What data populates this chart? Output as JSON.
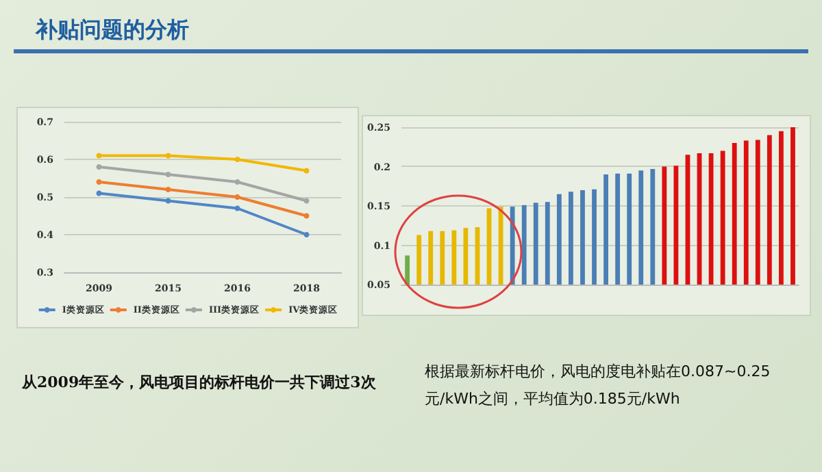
{
  "chart_data": [
    {
      "type": "line",
      "title": "补贴问题的分析",
      "categories": [
        "2009",
        "2015",
        "2016",
        "2018"
      ],
      "series": [
        {
          "name": "I类资源区",
          "color": "#4f86c6",
          "values": [
            0.51,
            0.49,
            0.47,
            0.4
          ]
        },
        {
          "name": "II类资源区",
          "color": "#ed7d31",
          "values": [
            0.54,
            0.52,
            0.5,
            0.45
          ]
        },
        {
          "name": "III类资源区",
          "color": "#a5a5a5",
          "values": [
            0.58,
            0.56,
            0.54,
            0.49
          ]
        },
        {
          "name": "IV类资源区",
          "color": "#f2b705",
          "values": [
            0.61,
            0.61,
            0.6,
            0.57
          ]
        }
      ],
      "ylim": [
        0.3,
        0.7
      ],
      "yticks": [
        0.3,
        0.4,
        0.5,
        0.6,
        0.7
      ],
      "grid": "y",
      "legend": "bottom",
      "marker": "circle",
      "annotations": [
        "从2009年至今，风电项目的标杆电价一共下调过3次"
      ]
    },
    {
      "type": "bar",
      "categories": [
        null,
        null,
        null,
        null,
        null,
        null,
        null,
        null,
        null,
        null,
        null,
        null,
        null,
        null,
        null,
        null,
        null,
        null,
        null,
        null,
        null,
        null,
        null,
        null,
        null,
        null,
        null,
        null,
        null,
        null,
        null,
        null,
        null,
        null
      ],
      "values": [
        0.087,
        0.113,
        0.118,
        0.118,
        0.119,
        0.122,
        0.123,
        0.147,
        0.149,
        0.149,
        0.151,
        0.154,
        0.155,
        0.165,
        0.168,
        0.17,
        0.171,
        0.19,
        0.191,
        0.191,
        0.195,
        0.197,
        0.2,
        0.201,
        0.215,
        0.217,
        0.217,
        0.22,
        0.23,
        0.233,
        0.234,
        0.24,
        0.245,
        0.25
      ],
      "colors": [
        "#70ad47",
        "#e6b800",
        "#e6b800",
        "#e6b800",
        "#e6b800",
        "#e6b800",
        "#e6b800",
        "#e6b800",
        "#e6b800",
        "#4a7eb5",
        "#4a7eb5",
        "#4a7eb5",
        "#4a7eb5",
        "#4a7eb5",
        "#4a7eb5",
        "#4a7eb5",
        "#4a7eb5",
        "#4a7eb5",
        "#4a7eb5",
        "#4a7eb5",
        "#4a7eb5",
        "#4a7eb5",
        "#dd1010",
        "#dd1010",
        "#dd1010",
        "#dd1010",
        "#dd1010",
        "#dd1010",
        "#dd1010",
        "#dd1010",
        "#dd1010",
        "#dd1010",
        "#dd1010",
        "#dd1010"
      ],
      "ylim": [
        0.05,
        0.25
      ],
      "yticks": [
        0.05,
        0.1,
        0.15,
        0.2,
        0.25
      ],
      "grid": "y",
      "tick_labels": "y",
      "annotations": [
        "根据最新标杆电价，风电的度电补贴在0.087~0.25元/kWh之间，平均值为0.185元/kWh"
      ]
    }
  ]
}
